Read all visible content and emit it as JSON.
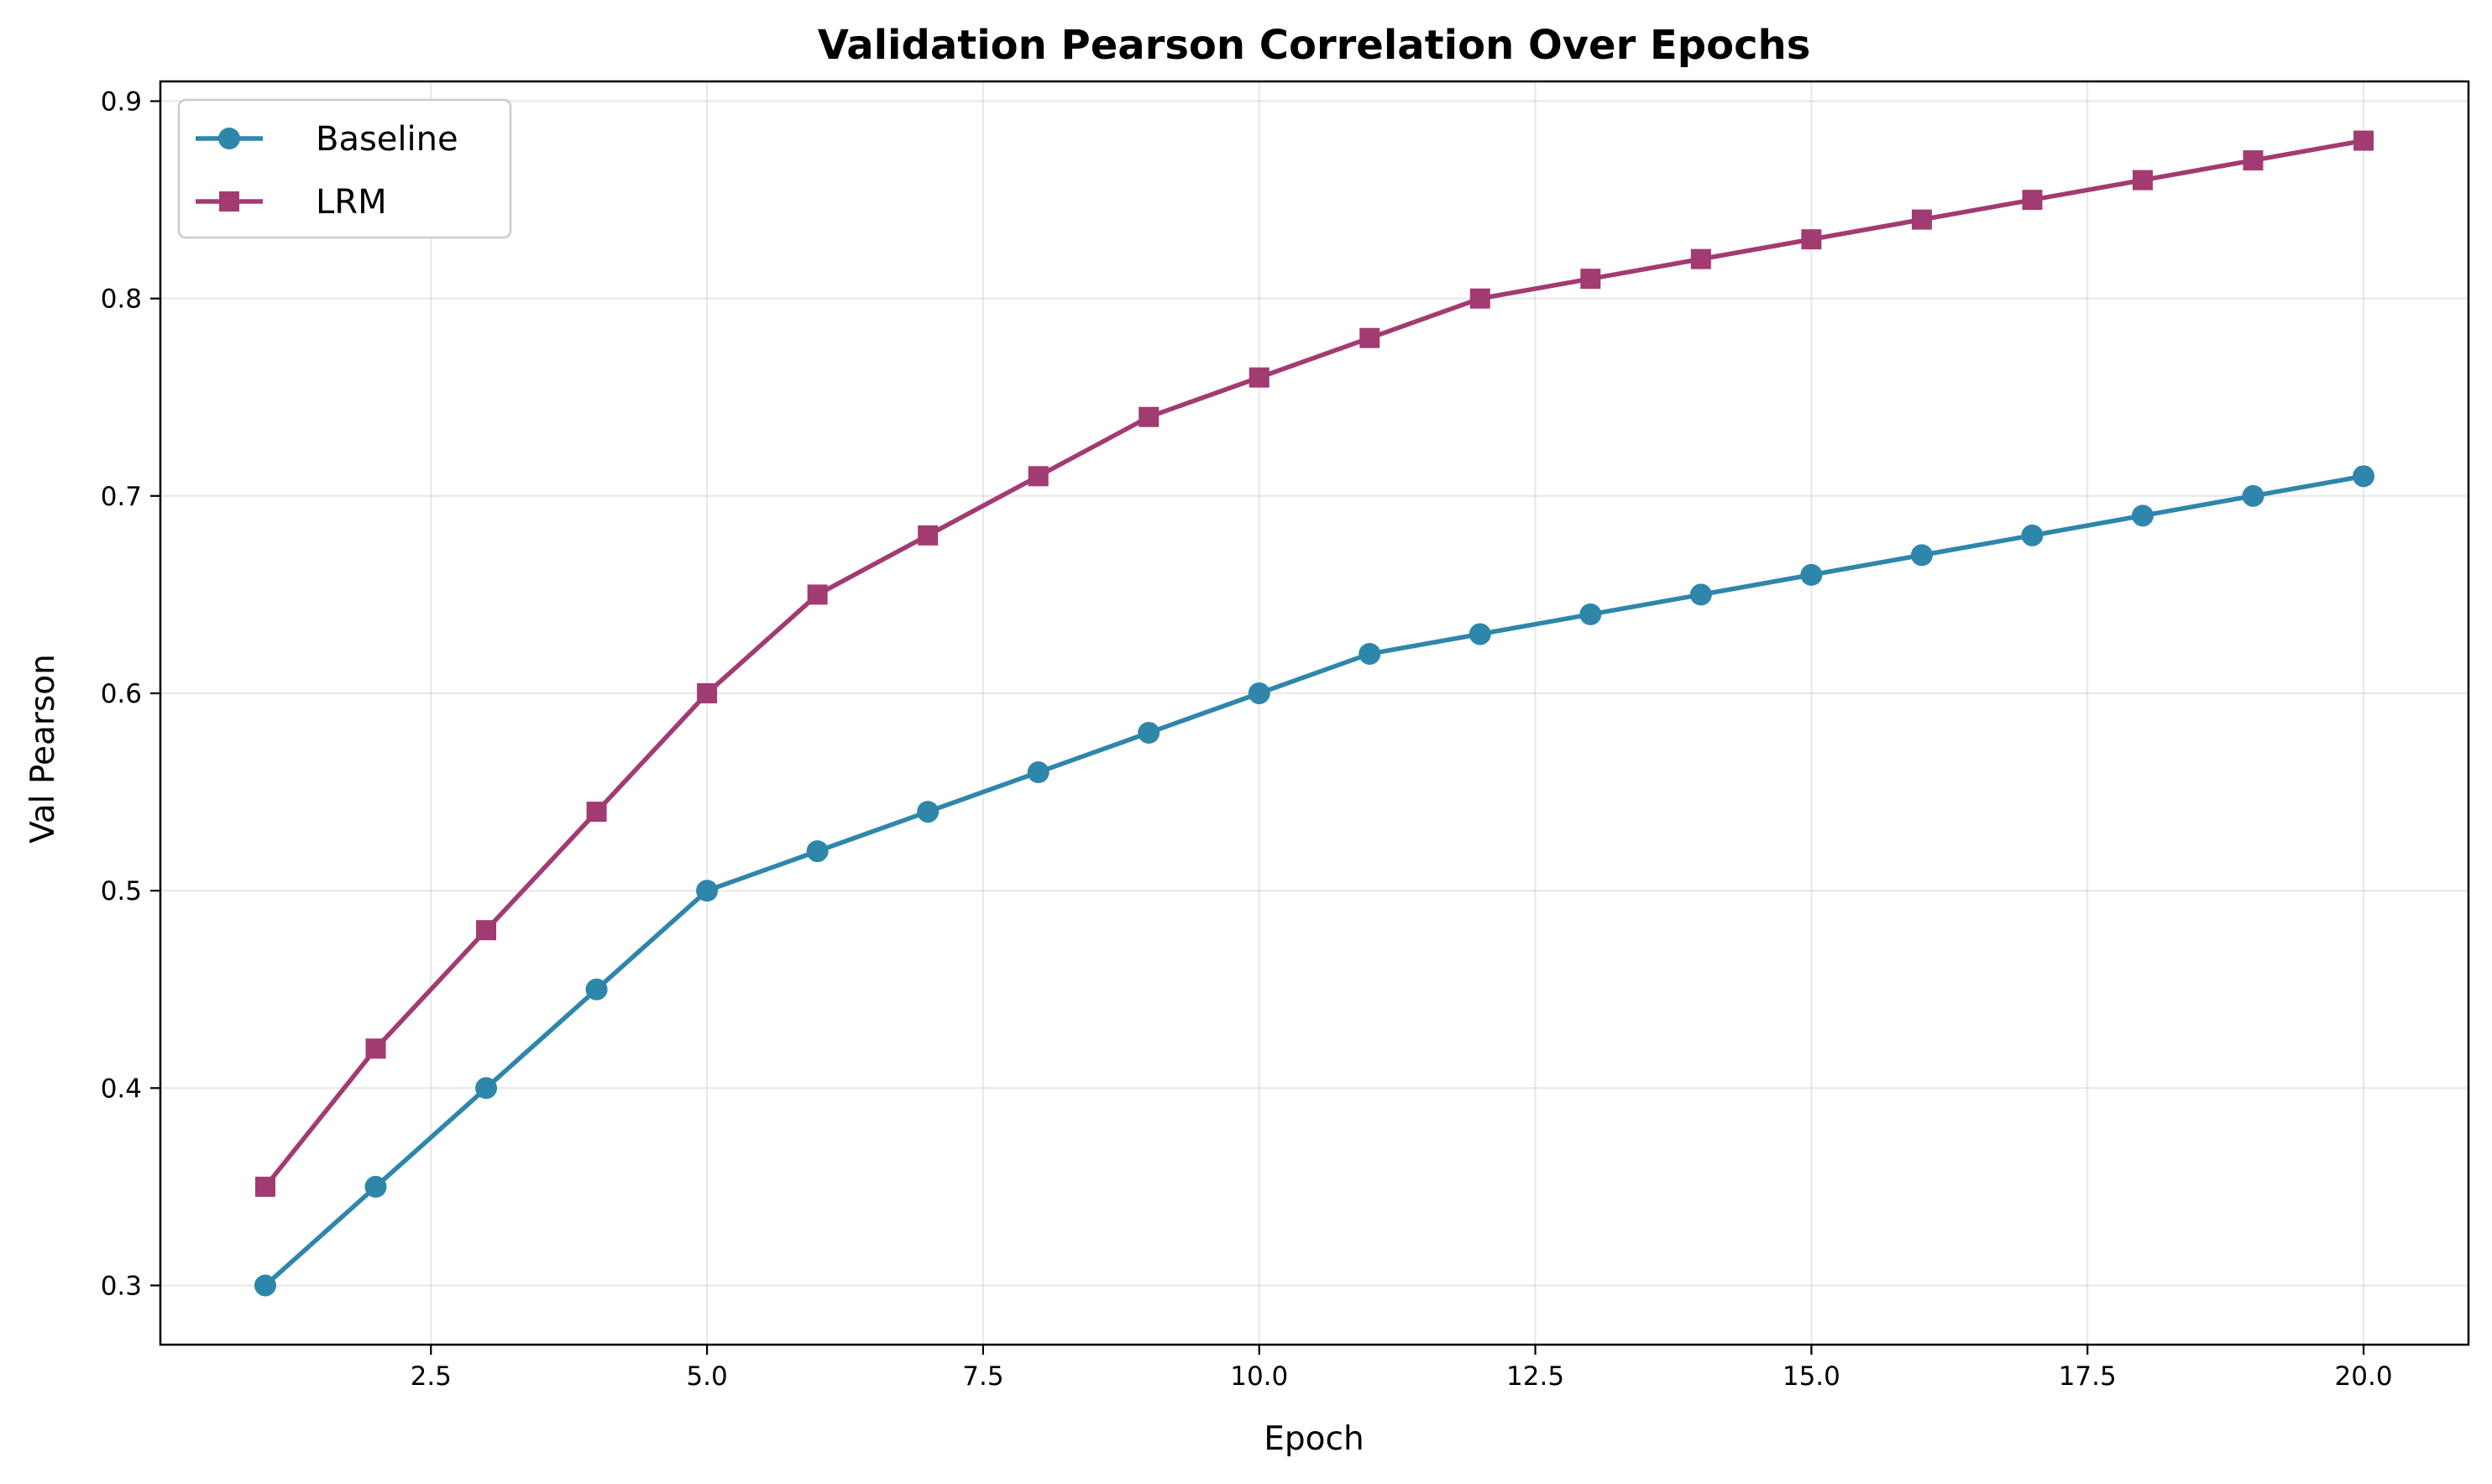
{
  "chart_data": {
    "type": "line",
    "title": "Validation Pearson Correlation Over Epochs",
    "xlabel": "Epoch",
    "ylabel": "Val Pearson",
    "xlim": [
      0.05,
      20.95
    ],
    "ylim": [
      0.27,
      0.91
    ],
    "xticks": [
      2.5,
      5.0,
      7.5,
      10.0,
      12.5,
      15.0,
      17.5,
      20.0
    ],
    "xtick_labels": [
      "2.5",
      "5.0",
      "7.5",
      "10.0",
      "12.5",
      "15.0",
      "17.5",
      "20.0"
    ],
    "yticks": [
      0.3,
      0.4,
      0.5,
      0.6,
      0.7,
      0.8,
      0.9
    ],
    "ytick_labels": [
      "0.3",
      "0.4",
      "0.5",
      "0.6",
      "0.7",
      "0.8",
      "0.9"
    ],
    "grid": true,
    "legend_position": "top-left",
    "x": [
      1,
      2,
      3,
      4,
      5,
      6,
      7,
      8,
      9,
      10,
      11,
      12,
      13,
      14,
      15,
      16,
      17,
      18,
      19,
      20
    ],
    "series": [
      {
        "name": "Baseline",
        "color": "#2e86ab",
        "marker": "circle",
        "values": [
          0.3,
          0.35,
          0.4,
          0.45,
          0.5,
          0.52,
          0.54,
          0.56,
          0.58,
          0.6,
          0.62,
          0.63,
          0.64,
          0.65,
          0.66,
          0.67,
          0.68,
          0.69,
          0.7,
          0.71
        ]
      },
      {
        "name": "LRM",
        "color": "#a23b72",
        "marker": "square",
        "values": [
          0.35,
          0.42,
          0.48,
          0.54,
          0.6,
          0.65,
          0.68,
          0.71,
          0.74,
          0.76,
          0.78,
          0.8,
          0.81,
          0.82,
          0.83,
          0.84,
          0.85,
          0.86,
          0.87,
          0.88
        ]
      }
    ]
  }
}
